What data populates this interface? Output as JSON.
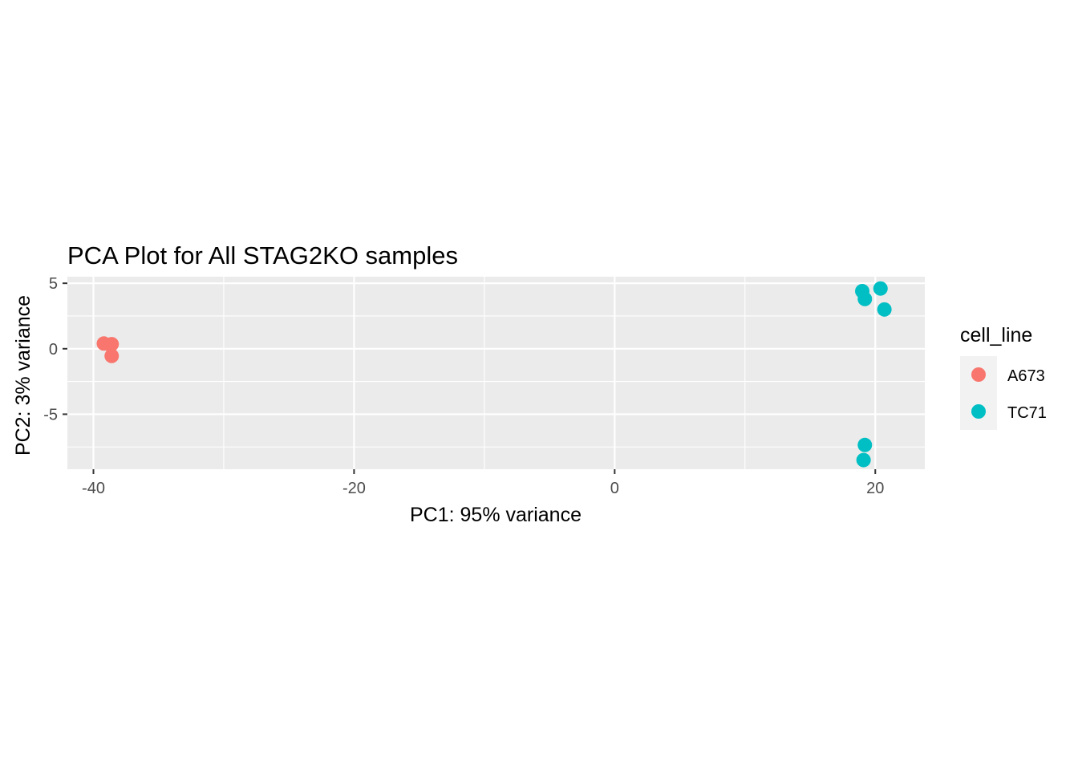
{
  "chart_data": {
    "type": "scatter",
    "title": "PCA Plot for All STAG2KO samples",
    "xlabel": "PC1: 95% variance",
    "ylabel": "PC2: 3% variance",
    "xlim": [
      -42,
      23.8
    ],
    "ylim": [
      -9.2,
      5.5
    ],
    "x_ticks": [
      -40,
      -20,
      0,
      20
    ],
    "x_tick_labels": [
      "-40",
      "-20",
      "0",
      "20"
    ],
    "y_ticks": [
      -5,
      0,
      5
    ],
    "y_tick_labels": [
      "-5",
      "0",
      "5"
    ],
    "grid": true,
    "legend": {
      "title": "cell_line",
      "position": "right"
    },
    "series": [
      {
        "name": "A673",
        "color": "#F8766D",
        "points": [
          {
            "x": -39.2,
            "y": 0.4
          },
          {
            "x": -38.6,
            "y": 0.35
          },
          {
            "x": -38.7,
            "y": 0.3
          },
          {
            "x": -38.6,
            "y": -0.55
          }
        ]
      },
      {
        "name": "TC71",
        "color": "#00BFC4",
        "points": [
          {
            "x": 19.0,
            "y": 4.4
          },
          {
            "x": 20.4,
            "y": 4.6
          },
          {
            "x": 19.2,
            "y": 3.8
          },
          {
            "x": 20.7,
            "y": 3.0
          },
          {
            "x": 19.2,
            "y": -7.35
          },
          {
            "x": 19.1,
            "y": -8.5
          }
        ]
      }
    ]
  }
}
